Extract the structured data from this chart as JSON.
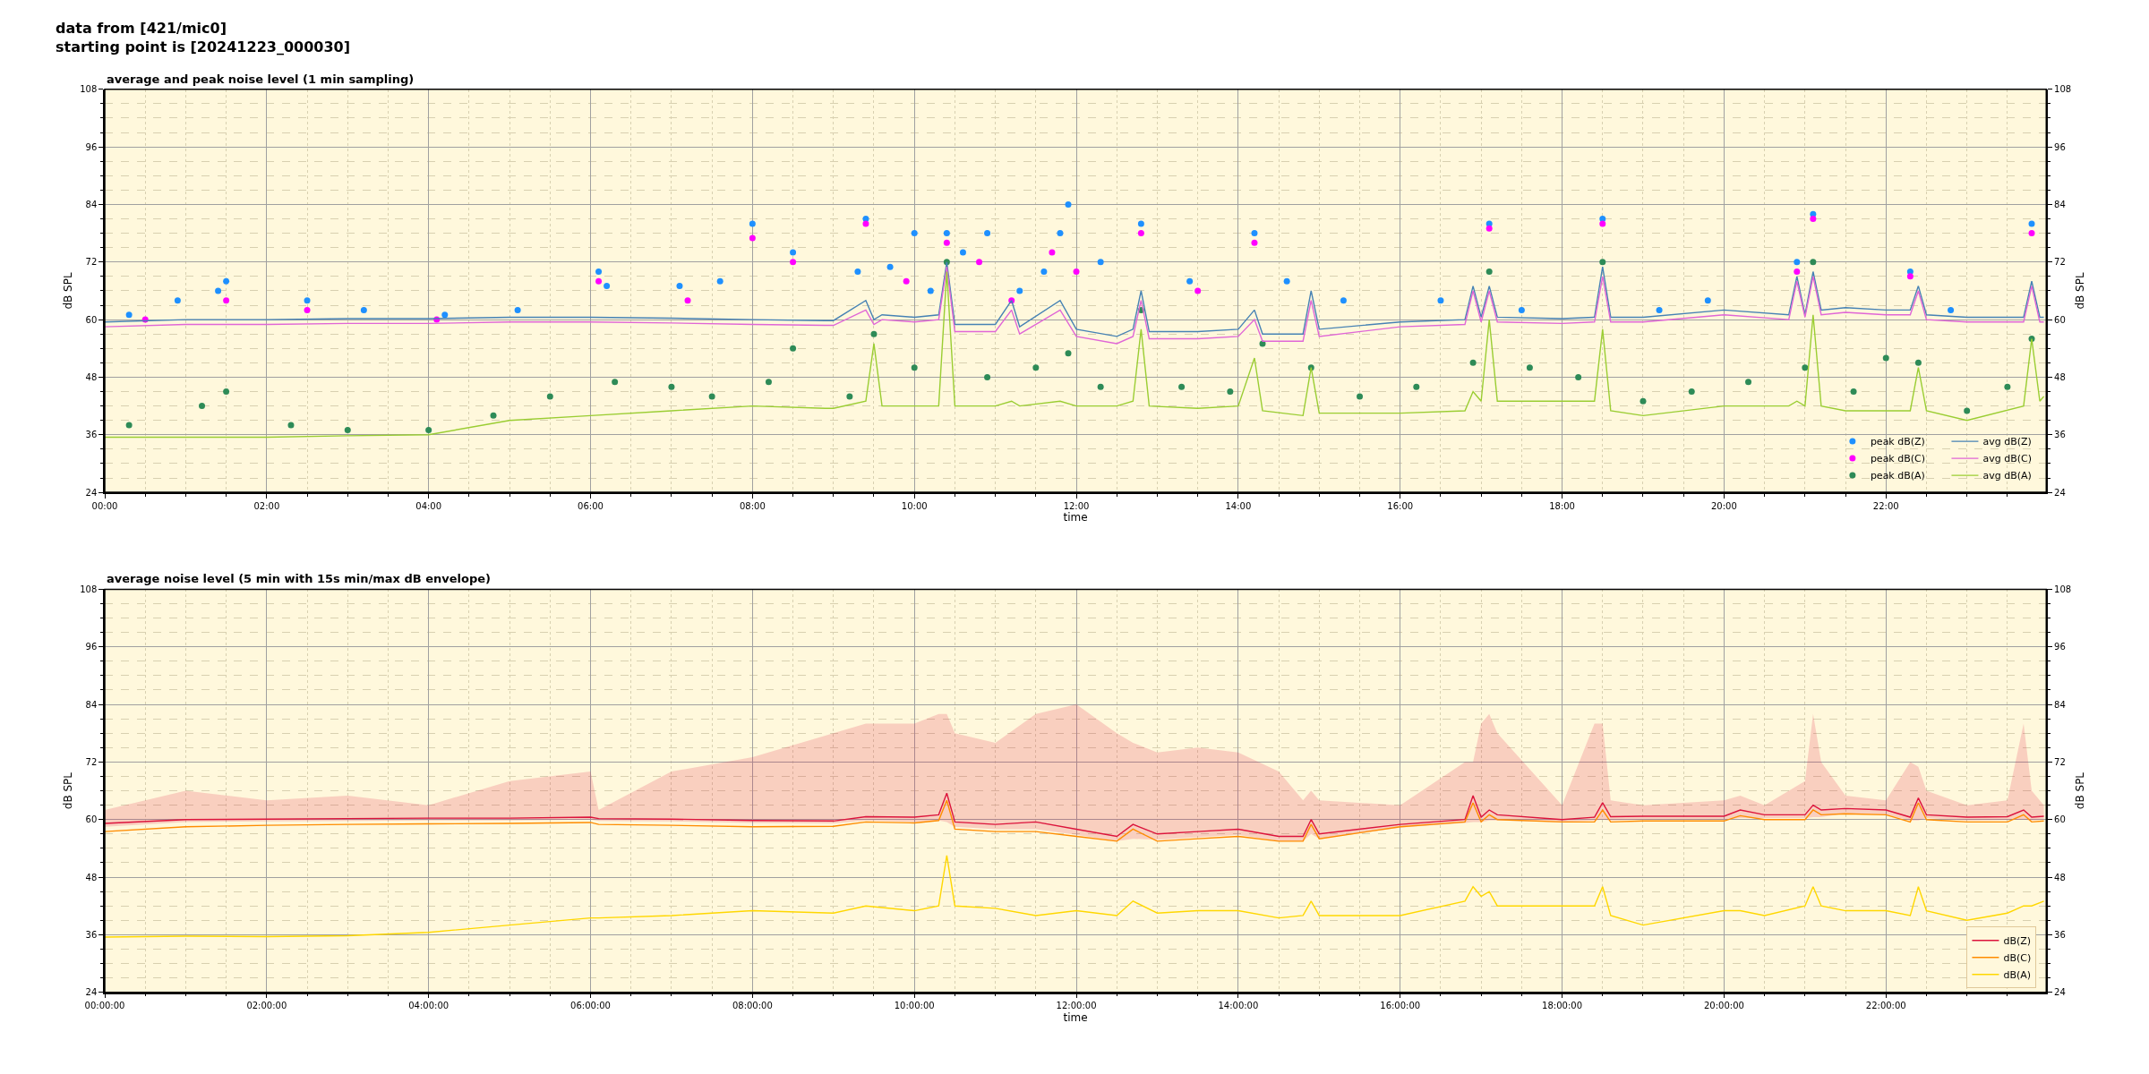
{
  "chart_data": [
    {
      "type": "line",
      "title": "average and peak noise level (1 min sampling)",
      "annotations": [
        "data from [421/mic0]\nstarting point is [20241223_000030]"
      ],
      "xlabel": "time",
      "ylabel": "dB SPL",
      "y2label": "dB SPL",
      "xlim": [
        0,
        23.98
      ],
      "xticks": [
        {
          "value": 0,
          "label": "00:00"
        },
        {
          "value": 0.5,
          "label": null
        },
        {
          "value": 1,
          "label": null
        },
        {
          "value": 1.5,
          "label": null
        },
        {
          "value": 2,
          "label": "02:00"
        },
        {
          "value": 2.5,
          "label": null
        },
        {
          "value": 3,
          "label": null
        },
        {
          "value": 3.5,
          "label": null
        },
        {
          "value": 4,
          "label": "04:00"
        },
        {
          "value": 4.5,
          "label": null
        },
        {
          "value": 5,
          "label": null
        },
        {
          "value": 5.5,
          "label": null
        },
        {
          "value": 6,
          "label": "06:00"
        },
        {
          "value": 6.5,
          "label": null
        },
        {
          "value": 7,
          "label": null
        },
        {
          "value": 7.5,
          "label": null
        },
        {
          "value": 8,
          "label": "08:00"
        },
        {
          "value": 8.5,
          "label": null
        },
        {
          "value": 9,
          "label": null
        },
        {
          "value": 9.5,
          "label": null
        },
        {
          "value": 10,
          "label": "10:00"
        },
        {
          "value": 10.5,
          "label": null
        },
        {
          "value": 11,
          "label": null
        },
        {
          "value": 11.5,
          "label": null
        },
        {
          "value": 12,
          "label": "12:00"
        },
        {
          "value": 12.5,
          "label": null
        },
        {
          "value": 13,
          "label": null
        },
        {
          "value": 13.5,
          "label": null
        },
        {
          "value": 14,
          "label": "14:00"
        },
        {
          "value": 14.5,
          "label": null
        },
        {
          "value": 15,
          "label": null
        },
        {
          "value": 15.5,
          "label": null
        },
        {
          "value": 16,
          "label": "16:00"
        },
        {
          "value": 16.5,
          "label": null
        },
        {
          "value": 17,
          "label": null
        },
        {
          "value": 17.5,
          "label": null
        },
        {
          "value": 18,
          "label": "18:00"
        },
        {
          "value": 18.5,
          "label": null
        },
        {
          "value": 19,
          "label": null
        },
        {
          "value": 19.5,
          "label": null
        },
        {
          "value": 20,
          "label": "20:00"
        },
        {
          "value": 20.5,
          "label": null
        },
        {
          "value": 21,
          "label": null
        },
        {
          "value": 21.5,
          "label": null
        },
        {
          "value": 22,
          "label": "22:00"
        },
        {
          "value": 22.5,
          "label": null
        },
        {
          "value": 23,
          "label": null
        },
        {
          "value": 23.5,
          "label": null
        }
      ],
      "ylim": [
        24,
        108
      ],
      "yticks": [
        24,
        {
          "value": 27,
          "label": null
        },
        {
          "value": 30,
          "label": null
        },
        {
          "value": 33,
          "label": null
        },
        36,
        {
          "value": 39,
          "label": null
        },
        {
          "value": 42,
          "label": null
        },
        {
          "value": 45,
          "label": null
        },
        48,
        {
          "value": 51,
          "label": null
        },
        {
          "value": 54,
          "label": null
        },
        {
          "value": 57,
          "label": null
        },
        60,
        {
          "value": 63,
          "label": null
        },
        {
          "value": 66,
          "label": null
        },
        {
          "value": 69,
          "label": null
        },
        72,
        {
          "value": 75,
          "label": null
        },
        {
          "value": 78,
          "label": null
        },
        {
          "value": 81,
          "label": null
        },
        84,
        {
          "value": 87,
          "label": null
        },
        {
          "value": 90,
          "label": null
        },
        {
          "value": 93,
          "label": null
        },
        96,
        {
          "value": 99,
          "label": null
        },
        {
          "value": 102,
          "label": null
        },
        {
          "value": 105,
          "label": null
        },
        108
      ],
      "y2lim": [
        24,
        108
      ],
      "y2ticks": [
        24,
        {
          "value": 27,
          "label": null
        },
        {
          "value": 30,
          "label": null
        },
        {
          "value": 33,
          "label": null
        },
        36,
        {
          "value": 39,
          "label": null
        },
        {
          "value": 42,
          "label": null
        },
        {
          "value": 45,
          "label": null
        },
        48,
        {
          "value": 51,
          "label": null
        },
        {
          "value": 54,
          "label": null
        },
        {
          "value": 57,
          "label": null
        },
        60,
        {
          "value": 63,
          "label": null
        },
        {
          "value": 66,
          "label": null
        },
        {
          "value": 69,
          "label": null
        },
        72,
        {
          "value": 75,
          "label": null
        },
        {
          "value": 78,
          "label": null
        },
        {
          "value": 81,
          "label": null
        },
        84,
        {
          "value": 87,
          "label": null
        },
        {
          "value": 90,
          "label": null
        },
        {
          "value": 93,
          "label": null
        },
        96,
        {
          "value": 99,
          "label": null
        },
        {
          "value": 102,
          "label": null
        },
        {
          "value": 105,
          "label": null
        },
        108
      ],
      "grid": true,
      "legend": "bottom right",
      "series": [
        {
          "name": "peak dB(Z)",
          "type": "scatter",
          "marker": "circle",
          "color": "#1e90ff",
          "x": [
            0.3,
            0.9,
            1.4,
            1.5,
            2.5,
            3.2,
            4.2,
            5.1,
            6.1,
            6.2,
            7.1,
            7.6,
            8.0,
            8.5,
            9.3,
            9.4,
            9.7,
            10.0,
            10.2,
            10.4,
            10.6,
            10.9,
            11.3,
            11.6,
            11.8,
            11.9,
            12.3,
            12.8,
            13.4,
            14.2,
            14.6,
            15.3,
            16.5,
            17.1,
            17.5,
            18.5,
            19.2,
            19.8,
            20.9,
            21.1,
            22.3,
            22.8,
            23.8
          ],
          "values": [
            61,
            64,
            66,
            68,
            64,
            62,
            61,
            62,
            70,
            67,
            67,
            68,
            80,
            74,
            70,
            81,
            71,
            78,
            66,
            78,
            74,
            78,
            66,
            70,
            78,
            84,
            72,
            80,
            68,
            78,
            68,
            64,
            64,
            80,
            62,
            81,
            62,
            64,
            72,
            82,
            70,
            62,
            80
          ]
        },
        {
          "name": "peak dB(C)",
          "type": "scatter",
          "marker": "circle",
          "color": "#ff00ff",
          "x": [
            0.5,
            1.5,
            2.5,
            4.1,
            6.1,
            7.2,
            8.0,
            8.5,
            9.4,
            9.9,
            10.4,
            10.8,
            11.2,
            11.7,
            12.0,
            12.8,
            13.5,
            14.2,
            14.9,
            16.9,
            17.1,
            18.5,
            20.9,
            21.1,
            22.3,
            23.8
          ],
          "values": [
            60,
            64,
            62,
            60,
            68,
            64,
            77,
            72,
            80,
            68,
            76,
            72,
            64,
            74,
            70,
            78,
            66,
            76,
            null,
            null,
            79,
            80,
            70,
            81,
            69,
            78
          ]
        },
        {
          "name": "peak dB(A)",
          "type": "scatter",
          "marker": "circle",
          "color": "#2e8b57",
          "x": [
            0.3,
            1.2,
            1.5,
            2.3,
            3.0,
            4.0,
            4.8,
            5.5,
            6.3,
            7.0,
            7.5,
            8.2,
            8.5,
            9.2,
            9.5,
            10.0,
            10.4,
            10.9,
            11.5,
            11.9,
            12.3,
            12.8,
            13.3,
            13.9,
            14.3,
            14.9,
            15.5,
            16.2,
            16.9,
            17.1,
            17.6,
            18.2,
            18.5,
            19.0,
            19.6,
            20.3,
            21.0,
            21.1,
            21.6,
            22.0,
            22.4,
            23.0,
            23.5,
            23.8
          ],
          "values": [
            38,
            42,
            45,
            38,
            37,
            37,
            40,
            44,
            47,
            46,
            44,
            47,
            54,
            44,
            57,
            50,
            72,
            48,
            50,
            53,
            46,
            62,
            46,
            45,
            55,
            50,
            44,
            46,
            51,
            70,
            50,
            48,
            72,
            43,
            45,
            47,
            50,
            72,
            45,
            52,
            51,
            41,
            46,
            56
          ]
        },
        {
          "name": "avg dB(Z)",
          "type": "line",
          "color": "#4682b4",
          "x": [
            0,
            1,
            2,
            3,
            4,
            5,
            6,
            7,
            8,
            8.9,
            9,
            9.4,
            9.5,
            9.6,
            10,
            10.3,
            10.4,
            10.5,
            11,
            11.2,
            11.3,
            11.8,
            12,
            12.5,
            12.7,
            12.8,
            12.9,
            13.5,
            14,
            14.2,
            14.3,
            14.8,
            14.9,
            15,
            16,
            16.8,
            16.9,
            17,
            17.1,
            17.2,
            18,
            18.4,
            18.5,
            18.6,
            19,
            20,
            20.8,
            20.9,
            21,
            21.1,
            21.2,
            21.5,
            22,
            22.3,
            22.4,
            22.5,
            23,
            23.7,
            23.8,
            23.9,
            23.95
          ],
          "values": [
            59.5,
            60,
            60,
            60.2,
            60.2,
            60.5,
            60.5,
            60.3,
            60,
            59.8,
            59.8,
            64,
            60,
            61,
            60.5,
            61,
            72,
            59,
            59,
            64,
            58.5,
            64,
            58,
            56.5,
            58,
            66,
            57.5,
            57.5,
            58,
            62,
            57,
            57,
            66,
            58,
            59.5,
            60,
            67,
            60.5,
            67,
            60.5,
            60.2,
            60.5,
            71,
            60.5,
            60.5,
            62,
            61,
            69,
            61,
            70,
            62,
            62.5,
            62,
            62,
            67,
            61,
            60.5,
            60.5,
            68,
            60.5,
            60.5
          ]
        },
        {
          "name": "avg dB(C)",
          "type": "line",
          "color": "#e066d6",
          "x": [
            0,
            1,
            2,
            3,
            4,
            5,
            6,
            7,
            8,
            8.9,
            9,
            9.4,
            9.5,
            9.6,
            10,
            10.3,
            10.4,
            10.5,
            11,
            11.2,
            11.3,
            11.8,
            12,
            12.5,
            12.7,
            12.8,
            12.9,
            13.5,
            14,
            14.2,
            14.3,
            14.8,
            14.9,
            15,
            16,
            16.8,
            16.9,
            17,
            17.1,
            17.2,
            18,
            18.4,
            18.5,
            18.6,
            19,
            20,
            20.8,
            20.9,
            21,
            21.1,
            21.2,
            21.5,
            22,
            22.3,
            22.4,
            22.5,
            23,
            23.7,
            23.8,
            23.9,
            23.95
          ],
          "values": [
            58.5,
            59,
            59,
            59.2,
            59.2,
            59.5,
            59.5,
            59.3,
            59,
            58.8,
            58.8,
            62,
            59,
            60,
            59.5,
            60,
            71,
            57.5,
            57.5,
            62,
            57,
            62,
            56.5,
            55,
            56.5,
            64,
            56,
            56,
            56.5,
            60,
            55.5,
            55.5,
            64,
            56.5,
            58.5,
            59,
            66,
            59.5,
            66,
            59.5,
            59.2,
            59.5,
            69,
            59.5,
            59.5,
            61,
            60,
            68,
            60.5,
            69,
            61,
            61.5,
            61,
            61,
            66,
            60,
            59.5,
            59.5,
            67,
            59.5,
            59.5
          ]
        },
        {
          "name": "avg dB(A)",
          "type": "line",
          "color": "#9acd32",
          "x": [
            0,
            1,
            2,
            3,
            4,
            5,
            6,
            7,
            8,
            8.9,
            9,
            9.4,
            9.5,
            9.6,
            10,
            10.3,
            10.4,
            10.5,
            11,
            11.2,
            11.3,
            11.8,
            12,
            12.5,
            12.7,
            12.8,
            12.9,
            13.5,
            14,
            14.2,
            14.3,
            14.8,
            14.9,
            15,
            16,
            16.8,
            16.9,
            17,
            17.1,
            17.2,
            18,
            18.4,
            18.5,
            18.6,
            19,
            20,
            20.8,
            20.9,
            21,
            21.1,
            21.2,
            21.5,
            22,
            22.3,
            22.4,
            22.5,
            23,
            23.7,
            23.8,
            23.9,
            23.95
          ],
          "values": [
            35.5,
            35.5,
            35.5,
            35.8,
            36,
            39,
            40,
            41,
            42,
            41.5,
            41.5,
            43,
            55,
            42,
            42,
            42,
            70,
            42,
            42,
            43,
            42,
            43,
            42,
            42,
            43,
            58,
            42,
            41.5,
            42,
            52,
            41,
            40,
            50,
            40.5,
            40.5,
            41,
            45,
            43,
            60,
            43,
            43,
            43,
            58,
            41,
            40,
            42,
            42,
            43,
            42,
            61,
            42,
            41,
            41,
            41,
            50,
            41,
            39,
            42,
            56,
            43,
            44
          ]
        }
      ]
    },
    {
      "type": "line",
      "title": "average noise level (5 min with 15s min/max dB envelope)",
      "xlabel": "time",
      "ylabel": "dB SPL",
      "y2label": "dB SPL",
      "xlim": [
        0,
        23.98
      ],
      "xticks": [
        {
          "value": 0,
          "label": "00:00:00"
        },
        {
          "value": 0.5,
          "label": null
        },
        {
          "value": 1,
          "label": null
        },
        {
          "value": 1.5,
          "label": null
        },
        {
          "value": 2,
          "label": "02:00:00"
        },
        {
          "value": 2.5,
          "label": null
        },
        {
          "value": 3,
          "label": null
        },
        {
          "value": 3.5,
          "label": null
        },
        {
          "value": 4,
          "label": "04:00:00"
        },
        {
          "value": 4.5,
          "label": null
        },
        {
          "value": 5,
          "label": null
        },
        {
          "value": 5.5,
          "label": null
        },
        {
          "value": 6,
          "label": "06:00:00"
        },
        {
          "value": 6.5,
          "label": null
        },
        {
          "value": 7,
          "label": null
        },
        {
          "value": 7.5,
          "label": null
        },
        {
          "value": 8,
          "label": "08:00:00"
        },
        {
          "value": 8.5,
          "label": null
        },
        {
          "value": 9,
          "label": null
        },
        {
          "value": 9.5,
          "label": null
        },
        {
          "value": 10,
          "label": "10:00:00"
        },
        {
          "value": 10.5,
          "label": null
        },
        {
          "value": 11,
          "label": null
        },
        {
          "value": 11.5,
          "label": null
        },
        {
          "value": 12,
          "label": "12:00:00"
        },
        {
          "value": 12.5,
          "label": null
        },
        {
          "value": 13,
          "label": null
        },
        {
          "value": 13.5,
          "label": null
        },
        {
          "value": 14,
          "label": "14:00:00"
        },
        {
          "value": 14.5,
          "label": null
        },
        {
          "value": 15,
          "label": null
        },
        {
          "value": 15.5,
          "label": null
        },
        {
          "value": 16,
          "label": "16:00:00"
        },
        {
          "value": 16.5,
          "label": null
        },
        {
          "value": 17,
          "label": null
        },
        {
          "value": 17.5,
          "label": null
        },
        {
          "value": 18,
          "label": "18:00:00"
        },
        {
          "value": 18.5,
          "label": null
        },
        {
          "value": 19,
          "label": null
        },
        {
          "value": 19.5,
          "label": null
        },
        {
          "value": 20,
          "label": "20:00:00"
        },
        {
          "value": 20.5,
          "label": null
        },
        {
          "value": 21,
          "label": null
        },
        {
          "value": 21.5,
          "label": null
        },
        {
          "value": 22,
          "label": "22:00:00"
        },
        {
          "value": 22.5,
          "label": null
        },
        {
          "value": 23,
          "label": null
        },
        {
          "value": 23.5,
          "label": null
        }
      ],
      "ylim": [
        24,
        108
      ],
      "yticks": [
        24,
        {
          "value": 27,
          "label": null
        },
        {
          "value": 30,
          "label": null
        },
        {
          "value": 33,
          "label": null
        },
        36,
        {
          "value": 39,
          "label": null
        },
        {
          "value": 42,
          "label": null
        },
        {
          "value": 45,
          "label": null
        },
        48,
        {
          "value": 51,
          "label": null
        },
        {
          "value": 54,
          "label": null
        },
        {
          "value": 57,
          "label": null
        },
        60,
        {
          "value": 63,
          "label": null
        },
        {
          "value": 66,
          "label": null
        },
        {
          "value": 69,
          "label": null
        },
        72,
        {
          "value": 75,
          "label": null
        },
        {
          "value": 78,
          "label": null
        },
        {
          "value": 81,
          "label": null
        },
        84,
        {
          "value": 87,
          "label": null
        },
        {
          "value": 90,
          "label": null
        },
        {
          "value": 93,
          "label": null
        },
        96,
        {
          "value": 99,
          "label": null
        },
        {
          "value": 102,
          "label": null
        },
        {
          "value": 105,
          "label": null
        },
        108
      ],
      "y2lim": [
        24,
        108
      ],
      "y2ticks": [
        24,
        {
          "value": 27,
          "label": null
        },
        {
          "value": 30,
          "label": null
        },
        {
          "value": 33,
          "label": null
        },
        36,
        {
          "value": 39,
          "label": null
        },
        {
          "value": 42,
          "label": null
        },
        {
          "value": 45,
          "label": null
        },
        48,
        {
          "value": 51,
          "label": null
        },
        {
          "value": 54,
          "label": null
        },
        {
          "value": 57,
          "label": null
        },
        60,
        {
          "value": 63,
          "label": null
        },
        {
          "value": 66,
          "label": null
        },
        {
          "value": 69,
          "label": null
        },
        72,
        {
          "value": 75,
          "label": null
        },
        {
          "value": 78,
          "label": null
        },
        {
          "value": 81,
          "label": null
        },
        84,
        {
          "value": 87,
          "label": null
        },
        {
          "value": 90,
          "label": null
        },
        {
          "value": 93,
          "label": null
        },
        96,
        {
          "value": 99,
          "label": null
        },
        {
          "value": 102,
          "label": null
        },
        {
          "value": 105,
          "label": null
        },
        108
      ],
      "grid": true,
      "legend": "bottom right",
      "x": [
        0,
        1,
        2,
        3,
        4,
        5,
        6,
        6.1,
        7,
        8,
        9,
        9.4,
        10,
        10.3,
        10.4,
        10.5,
        11,
        11.5,
        12,
        12.5,
        12.7,
        13,
        13.5,
        14,
        14.5,
        14.8,
        14.9,
        15,
        16,
        16.8,
        16.9,
        17,
        17.1,
        17.2,
        18,
        18.4,
        18.5,
        18.6,
        19,
        20,
        20.2,
        20.5,
        21,
        21.1,
        21.2,
        21.5,
        22,
        22.3,
        22.4,
        22.5,
        23,
        23.5,
        23.7,
        23.8,
        23.95
      ],
      "series": [
        {
          "name": "dB(Z)",
          "type": "line",
          "color": "#dc143c",
          "values": [
            59.2,
            60,
            60.1,
            60.2,
            60.3,
            60.3,
            60.5,
            60.2,
            60.1,
            59.8,
            59.7,
            60.6,
            60.5,
            61,
            65.5,
            59.5,
            59,
            59.5,
            58,
            56.5,
            59,
            57,
            57.5,
            58,
            56.5,
            56.5,
            60,
            57,
            59,
            60,
            65,
            60.5,
            62,
            61,
            60,
            60.5,
            63.5,
            60.6,
            60.7,
            60.7,
            62,
            61,
            61,
            63,
            62,
            62.3,
            62,
            60.5,
            64.5,
            61,
            60.5,
            60.6,
            62,
            60.5,
            60.7
          ],
          "lower": [
            58.5,
            59.5,
            59.6,
            59.7,
            59.8,
            59.8,
            60,
            59.7,
            59.6,
            59.3,
            59.2,
            59.8,
            59.5,
            59.8,
            59.5,
            58.5,
            58,
            58,
            56.8,
            55.5,
            56,
            55.8,
            56.3,
            56.8,
            55.5,
            55.5,
            57,
            56,
            58.3,
            59.3,
            59.5,
            59.5,
            59.8,
            59.8,
            59.5,
            59.8,
            60,
            59.8,
            60,
            60,
            60.3,
            60.3,
            60.3,
            60.5,
            60.5,
            61.3,
            61,
            59.8,
            59.8,
            60.3,
            59.8,
            59.9,
            60,
            59.8,
            60
          ],
          "upper": [
            62,
            66,
            64,
            65,
            63,
            68,
            70,
            62,
            70,
            73,
            78,
            80,
            80,
            82,
            82,
            78,
            76,
            82,
            84,
            78,
            76,
            74,
            75,
            74,
            70,
            64,
            66,
            64,
            63,
            72,
            72,
            80,
            82,
            78,
            63,
            80,
            80,
            64,
            63,
            64,
            65,
            63,
            68,
            82,
            72,
            65,
            64,
            72,
            71,
            66,
            63,
            64,
            80,
            66,
            63
          ]
        },
        {
          "name": "dB(C)",
          "type": "line",
          "color": "#ff8c00",
          "values": [
            57.5,
            58.5,
            58.8,
            59,
            59.1,
            59.2,
            59.4,
            59,
            58.8,
            58.5,
            58.6,
            59.5,
            59.3,
            59.8,
            64,
            58,
            57.5,
            57.5,
            56.5,
            55.5,
            58,
            55.5,
            56,
            56.5,
            55.5,
            55.5,
            59,
            56,
            58.5,
            59.5,
            63.5,
            59.5,
            61,
            60,
            59.5,
            59.5,
            62,
            59.5,
            59.7,
            59.7,
            60.8,
            60,
            60,
            62,
            61,
            61.2,
            61,
            59.5,
            63.5,
            60,
            59.5,
            59.5,
            61,
            59.5,
            59.7
          ]
        },
        {
          "name": "dB(A)",
          "type": "line",
          "color": "#ffd700",
          "values": [
            35.5,
            35.7,
            35.6,
            35.8,
            36.5,
            38,
            39.5,
            39.5,
            40,
            41,
            40.5,
            42,
            41,
            42,
            52.5,
            42,
            41.5,
            40,
            41,
            40,
            43,
            40.5,
            41,
            41,
            39.5,
            40,
            43,
            40,
            40,
            43,
            46,
            44,
            45,
            42,
            42,
            42,
            46,
            40,
            38,
            41,
            41,
            40,
            42,
            46,
            42,
            41,
            41,
            40,
            46,
            41,
            39,
            40.5,
            42,
            42,
            43
          ]
        }
      ]
    }
  ]
}
